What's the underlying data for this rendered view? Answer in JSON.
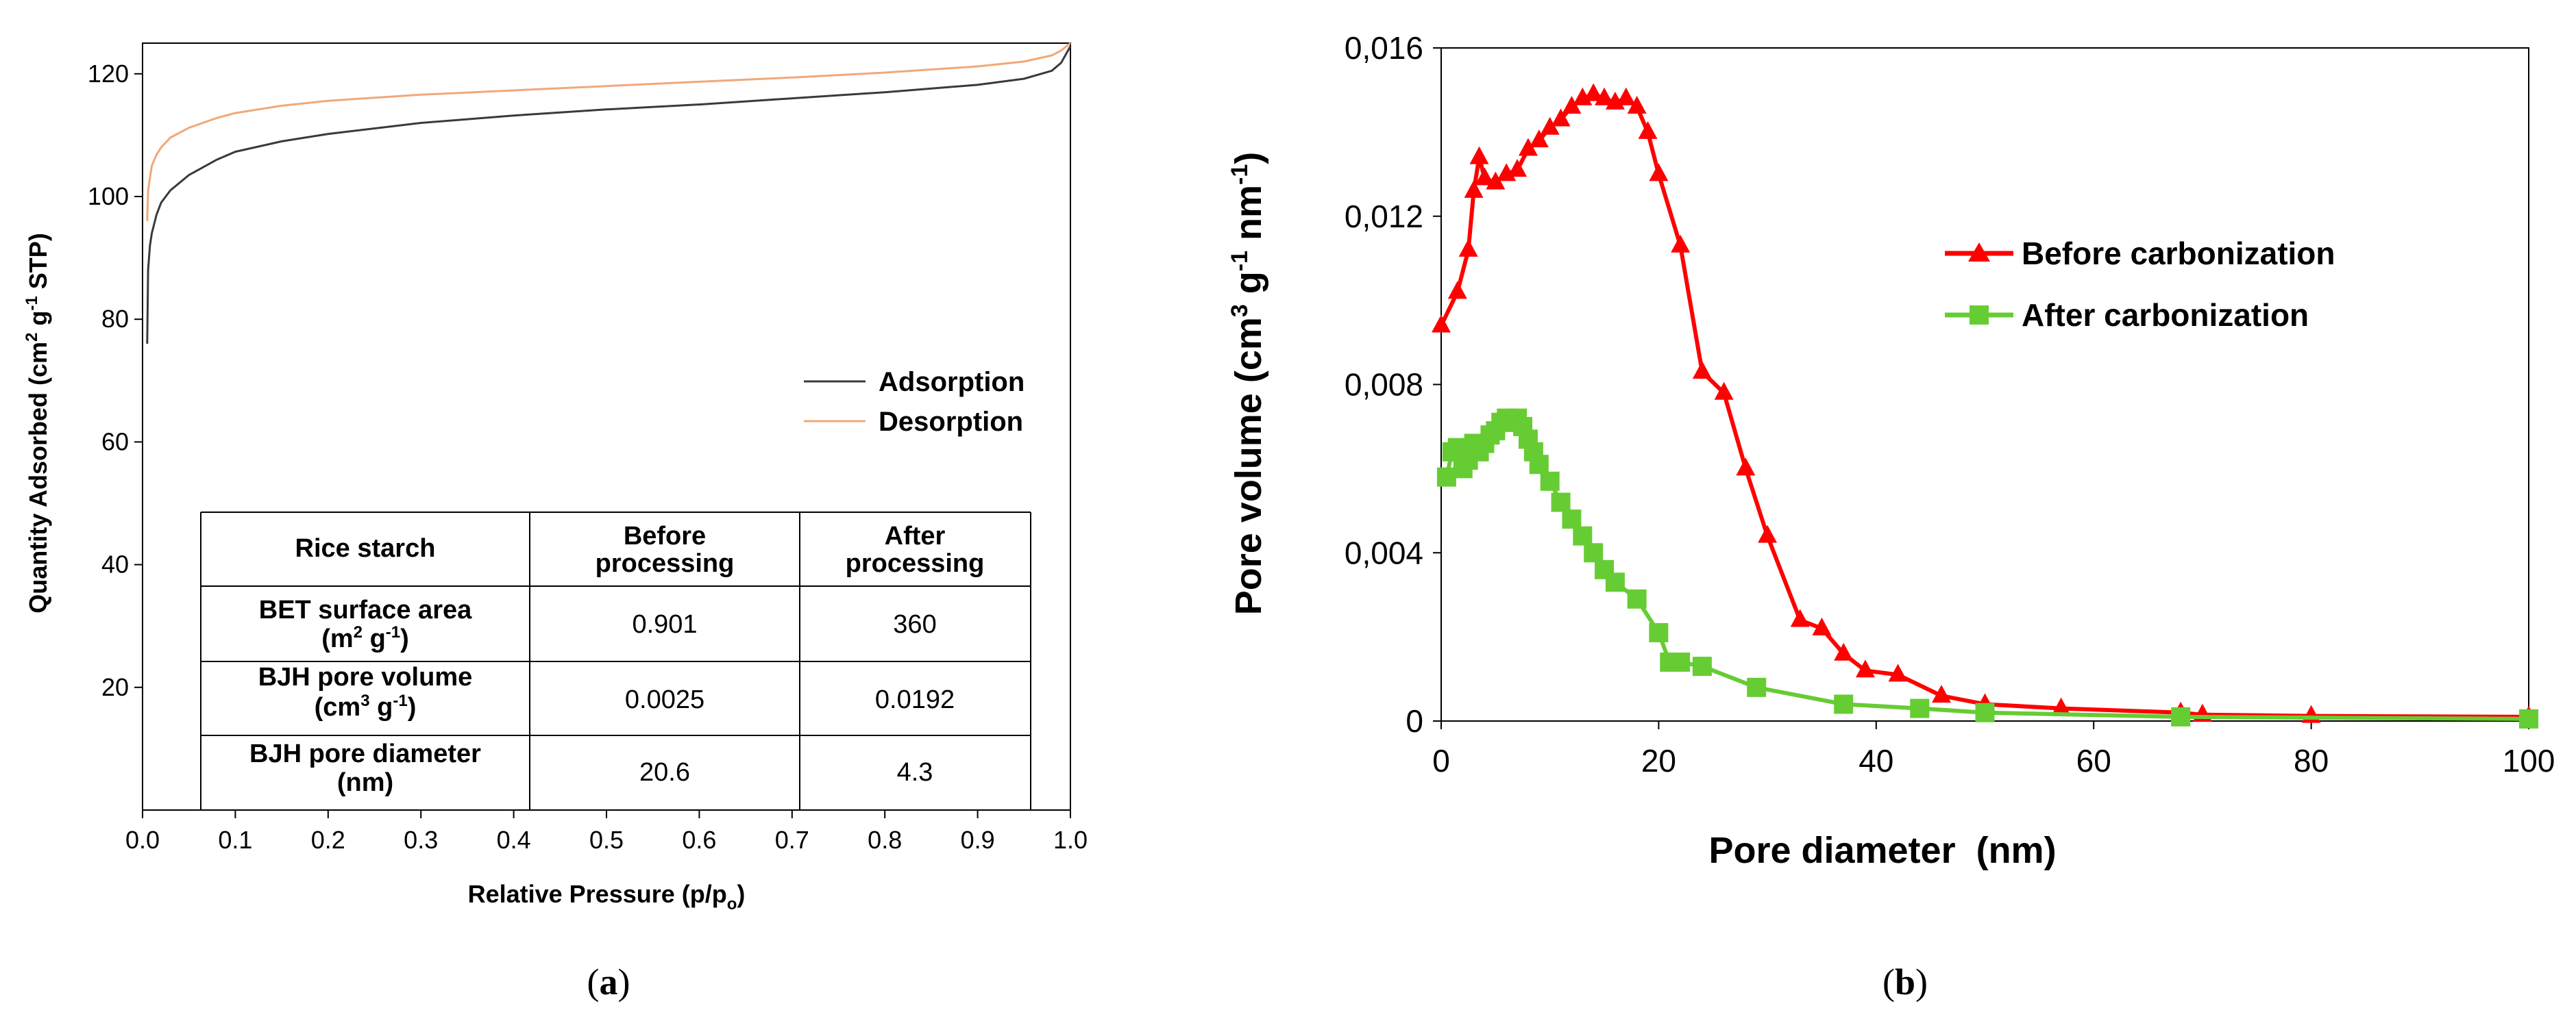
{
  "colors": {
    "adsorption": "#3a3a3a",
    "desorption": "#f0a878",
    "before": "#ff0000",
    "after": "#66cc33"
  },
  "chart_data": [
    {
      "id": "a",
      "type": "line",
      "panel_label": "a",
      "title": "",
      "xlabel_main": "Relative Pressure (p/p",
      "xlabel_sub": "o",
      "xlabel_end": ")",
      "ylabel": "Quantity Adsorbed (cm² g⁻¹ STP)",
      "xlim": [
        0.0,
        1.0
      ],
      "ylim": [
        0,
        125
      ],
      "x_ticks": [
        "0.0",
        "0.1",
        "0.2",
        "0.3",
        "0.4",
        "0.5",
        "0.6",
        "0.7",
        "0.8",
        "0.9",
        "1.0"
      ],
      "y_ticks": [
        "20",
        "40",
        "60",
        "80",
        "100",
        "120"
      ],
      "legend": [
        "Adsorption",
        "Desorption"
      ],
      "series": [
        {
          "name": "Adsorption",
          "x": [
            0.005,
            0.006,
            0.008,
            0.01,
            0.015,
            0.02,
            0.03,
            0.05,
            0.08,
            0.1,
            0.15,
            0.2,
            0.3,
            0.4,
            0.5,
            0.6,
            0.7,
            0.8,
            0.9,
            0.95,
            0.98,
            0.99,
            1.0
          ],
          "values": [
            76,
            88,
            92,
            94,
            97,
            99,
            101,
            103.5,
            106,
            107.3,
            109,
            110.2,
            112,
            113.2,
            114.2,
            115,
            116,
            117,
            118.2,
            119.2,
            120.5,
            121.8,
            124.5
          ]
        },
        {
          "name": "Desorption",
          "x": [
            0.005,
            0.006,
            0.008,
            0.01,
            0.015,
            0.02,
            0.03,
            0.05,
            0.08,
            0.1,
            0.15,
            0.2,
            0.3,
            0.4,
            0.5,
            0.6,
            0.7,
            0.8,
            0.9,
            0.95,
            0.98,
            0.99,
            1.0
          ],
          "values": [
            96,
            101,
            103,
            105,
            106.8,
            108,
            109.6,
            111.2,
            112.8,
            113.6,
            114.8,
            115.6,
            116.6,
            117.3,
            118,
            118.7,
            119.4,
            120.2,
            121.2,
            122,
            123,
            123.8,
            125
          ]
        }
      ],
      "table": {
        "header": [
          "Rice starch",
          "Before\nprocessing",
          "After\nprocessing"
        ],
        "rows": [
          {
            "label": "BET surface area",
            "unit_main": "(m",
            "unit_sup": "2",
            "unit_rest": " g",
            "unit_sup2": "-1",
            "unit_end": ")",
            "before": "0.901",
            "after": "360"
          },
          {
            "label": "BJH pore volume",
            "unit_main": "(cm",
            "unit_sup": "3",
            "unit_rest": " g",
            "unit_sup2": "-1",
            "unit_end": ")",
            "before": "0.0025",
            "after": "0.0192"
          },
          {
            "label": "BJH pore diameter",
            "unit_main": "(nm)",
            "unit_sup": "",
            "unit_rest": "",
            "unit_sup2": "",
            "unit_end": "",
            "before": "20.6",
            "after": "4.3"
          }
        ]
      }
    },
    {
      "id": "b",
      "type": "line",
      "panel_label": "b",
      "title": "",
      "xlabel": "Pore diameter  (nm)",
      "ylabel": "Pore volume (cm³ g⁻¹ nm⁻¹)",
      "xlim": [
        0,
        100
      ],
      "ylim": [
        0,
        0.016
      ],
      "x_ticks": [
        "0",
        "20",
        "40",
        "60",
        "80",
        "100"
      ],
      "y_ticks": [
        "0",
        "0,004",
        "0,008",
        "0,012",
        "0,016"
      ],
      "legend": [
        "Before carbonization",
        "After carbonization"
      ],
      "series": [
        {
          "name": "Before carbonization",
          "marker": "triangle",
          "x": [
            0,
            1.5,
            2.5,
            3,
            3.5,
            4,
            5,
            6,
            7,
            8,
            9,
            10,
            11,
            12,
            13,
            14,
            15,
            16,
            17,
            18,
            19,
            20,
            22,
            24,
            26,
            28,
            30,
            33,
            35,
            37,
            39,
            42,
            46,
            50,
            57,
            68,
            70,
            80,
            100
          ],
          "values": [
            0.0094,
            0.0102,
            0.0112,
            0.0126,
            0.0134,
            0.0129,
            0.0128,
            0.013,
            0.0131,
            0.0136,
            0.0138,
            0.0141,
            0.0143,
            0.0146,
            0.0148,
            0.0149,
            0.0148,
            0.0147,
            0.0148,
            0.0146,
            0.014,
            0.013,
            0.0113,
            0.0083,
            0.0078,
            0.006,
            0.0044,
            0.0024,
            0.0022,
            0.0016,
            0.0012,
            0.0011,
            0.0006,
            0.0004,
            0.0003,
            0.0002,
            0.00015,
            0.00012,
            0.0001
          ]
        },
        {
          "name": "After carbonization",
          "marker": "square",
          "x": [
            0.5,
            1,
            1.5,
            2,
            2.5,
            3,
            3.5,
            4,
            4.5,
            5,
            5.5,
            6,
            6.5,
            7,
            7.5,
            8,
            8.5,
            9,
            10,
            11,
            12,
            13,
            14,
            15,
            16,
            18,
            20,
            21,
            22,
            24,
            29,
            37,
            44,
            50,
            68,
            100
          ],
          "values": [
            0.0058,
            0.0064,
            0.0065,
            0.006,
            0.0062,
            0.0066,
            0.0064,
            0.0066,
            0.0068,
            0.0069,
            0.0071,
            0.0072,
            0.0071,
            0.0072,
            0.007,
            0.0067,
            0.0064,
            0.0061,
            0.0057,
            0.0052,
            0.0048,
            0.0044,
            0.004,
            0.0036,
            0.0033,
            0.0029,
            0.0021,
            0.0014,
            0.0014,
            0.0013,
            0.0008,
            0.0004,
            0.0003,
            0.0002,
            0.0001,
            5e-05
          ]
        }
      ]
    }
  ],
  "captions": {
    "a": "(a)",
    "b": "(b)"
  }
}
